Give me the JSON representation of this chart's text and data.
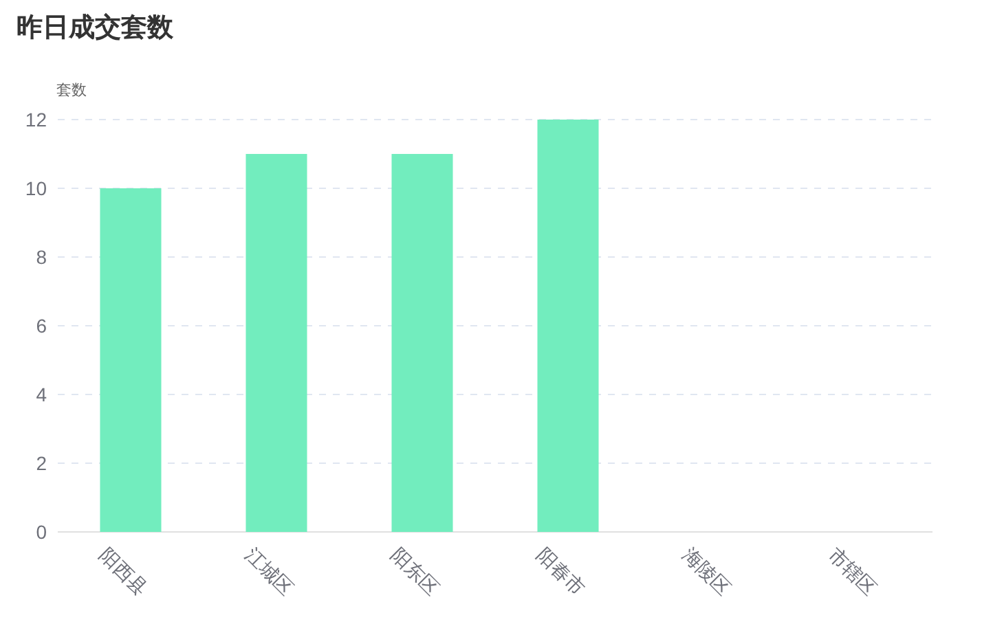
{
  "chart_data": {
    "type": "bar",
    "title": "昨日成交套数",
    "ylabel": "套数",
    "categories": [
      "阳西县",
      "江城区",
      "阳东区",
      "阳春市",
      "海陵区",
      "市辖区"
    ],
    "values": [
      10,
      11,
      11,
      12,
      0,
      0
    ],
    "color": "#72edbe",
    "ylim": [
      0,
      12
    ],
    "yticks": [
      0,
      2,
      4,
      6,
      8,
      10,
      12
    ],
    "grid": "y",
    "line_style": "dashed"
  }
}
